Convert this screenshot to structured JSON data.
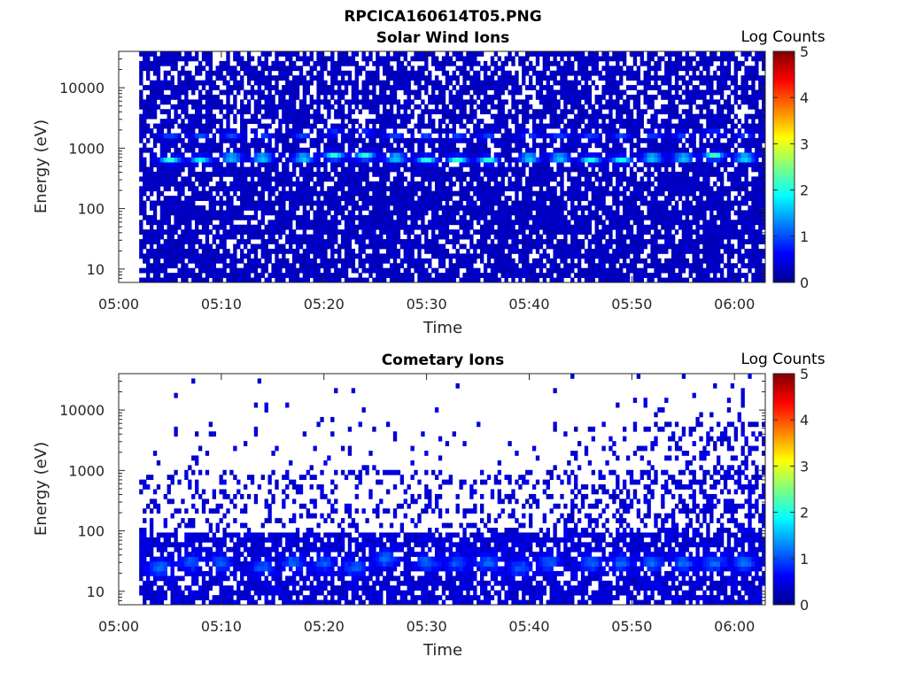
{
  "figure_title": "RPCICA160614T05.PNG",
  "chart_data": [
    {
      "type": "heatmap",
      "title": "Solar Wind Ions",
      "xlabel": "Time",
      "ylabel": "Energy (eV)",
      "x_range": [
        "05:00",
        "06:03"
      ],
      "x_ticks": [
        "05:00",
        "05:10",
        "05:20",
        "05:30",
        "05:40",
        "05:50",
        "06:00"
      ],
      "y_scale": "log",
      "y_range": [
        6,
        40000
      ],
      "y_ticks": [
        10,
        100,
        1000,
        10000
      ],
      "y_tick_labels": [
        "10",
        "100",
        "1000",
        "10000"
      ],
      "colorbar_label": "Log Counts",
      "colorbar_range": [
        0,
        5
      ],
      "colorbar_ticks": [
        "0",
        "1",
        "2",
        "3",
        "4",
        "5"
      ],
      "colormap": "jet",
      "data_start": "05:02",
      "description_of_values": "background ~0.3 log counts across 6 eV - 40 keV; band ~1.5-2 log counts near 600-800 eV; faint band ~1 near 1600 eV",
      "band_peaks": [
        {
          "time": "05:05",
          "energy": 650,
          "log_counts": 1.8
        },
        {
          "time": "05:08",
          "energy": 650,
          "log_counts": 1.6
        },
        {
          "time": "05:11",
          "energy": 700,
          "log_counts": 1.7
        },
        {
          "time": "05:14",
          "energy": 700,
          "log_counts": 1.8
        },
        {
          "time": "05:18",
          "energy": 700,
          "log_counts": 1.8
        },
        {
          "time": "05:21",
          "energy": 750,
          "log_counts": 1.9
        },
        {
          "time": "05:24",
          "energy": 750,
          "log_counts": 1.9
        },
        {
          "time": "05:27",
          "energy": 700,
          "log_counts": 1.8
        },
        {
          "time": "05:30",
          "energy": 650,
          "log_counts": 1.8
        },
        {
          "time": "05:33",
          "energy": 650,
          "log_counts": 1.9
        },
        {
          "time": "05:36",
          "energy": 650,
          "log_counts": 1.8
        },
        {
          "time": "05:40",
          "energy": 700,
          "log_counts": 1.8
        },
        {
          "time": "05:43",
          "energy": 700,
          "log_counts": 1.8
        },
        {
          "time": "05:46",
          "energy": 650,
          "log_counts": 1.7
        },
        {
          "time": "05:49",
          "energy": 650,
          "log_counts": 1.7
        },
        {
          "time": "05:52",
          "energy": 700,
          "log_counts": 1.8
        },
        {
          "time": "05:55",
          "energy": 700,
          "log_counts": 1.8
        },
        {
          "time": "05:58",
          "energy": 750,
          "log_counts": 2.0
        },
        {
          "time": "06:01",
          "energy": 700,
          "log_counts": 1.9
        }
      ]
    },
    {
      "type": "heatmap",
      "title": "Cometary Ions",
      "xlabel": "Time",
      "ylabel": "Energy (eV)",
      "x_range": [
        "05:00",
        "06:03"
      ],
      "x_ticks": [
        "05:00",
        "05:10",
        "05:20",
        "05:30",
        "05:40",
        "05:50",
        "06:00"
      ],
      "y_scale": "log",
      "y_range": [
        6,
        40000
      ],
      "y_ticks": [
        10,
        100,
        1000,
        10000
      ],
      "y_tick_labels": [
        "10",
        "100",
        "1000",
        "10000"
      ],
      "colorbar_label": "Log Counts",
      "colorbar_range": [
        0,
        5
      ],
      "colorbar_ticks": [
        "0",
        "1",
        "2",
        "3",
        "4",
        "5"
      ],
      "colormap": "jet",
      "data_start": "05:02",
      "description_of_values": "signal ~0.3-0.7 log counts below ~100 eV; enhanced ~1 log counts at 20-40 eV; sparse signal extending to ~5 keV after 05:45",
      "band_peaks": [
        {
          "time": "05:04",
          "energy": 25,
          "log_counts": 1.0
        },
        {
          "time": "05:07",
          "energy": 30,
          "log_counts": 0.9
        },
        {
          "time": "05:10",
          "energy": 30,
          "log_counts": 0.9
        },
        {
          "time": "05:14",
          "energy": 25,
          "log_counts": 0.9
        },
        {
          "time": "05:17",
          "energy": 30,
          "log_counts": 1.0
        },
        {
          "time": "05:20",
          "energy": 30,
          "log_counts": 0.9
        },
        {
          "time": "05:23",
          "energy": 25,
          "log_counts": 0.9
        },
        {
          "time": "05:26",
          "energy": 35,
          "log_counts": 1.1
        },
        {
          "time": "05:30",
          "energy": 30,
          "log_counts": 1.0
        },
        {
          "time": "05:33",
          "energy": 30,
          "log_counts": 0.9
        },
        {
          "time": "05:36",
          "energy": 30,
          "log_counts": 1.0
        },
        {
          "time": "05:39",
          "energy": 25,
          "log_counts": 0.9
        },
        {
          "time": "05:42",
          "energy": 30,
          "log_counts": 0.9
        },
        {
          "time": "05:46",
          "energy": 30,
          "log_counts": 1.0
        },
        {
          "time": "05:49",
          "energy": 30,
          "log_counts": 1.0
        },
        {
          "time": "05:52",
          "energy": 30,
          "log_counts": 1.0
        },
        {
          "time": "05:55",
          "energy": 30,
          "log_counts": 1.0
        },
        {
          "time": "05:58",
          "energy": 30,
          "log_counts": 1.0
        },
        {
          "time": "06:01",
          "energy": 30,
          "log_counts": 1.0
        }
      ]
    }
  ]
}
